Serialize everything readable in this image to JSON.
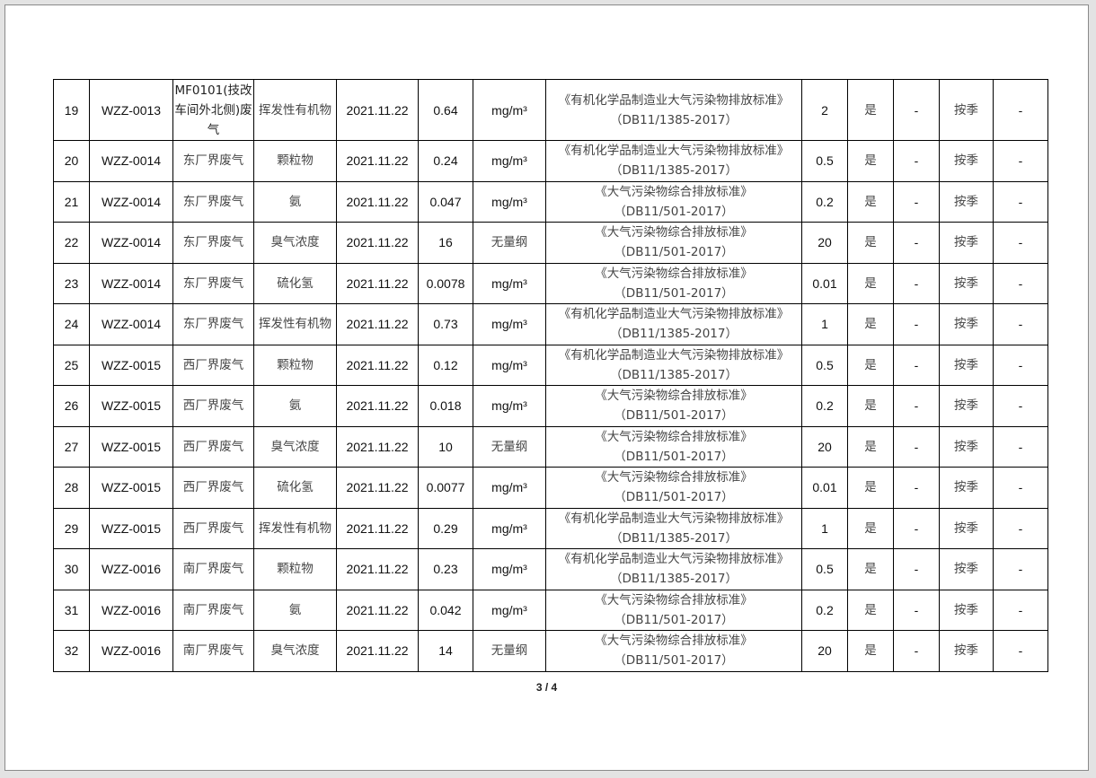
{
  "rows": [
    {
      "no": "19",
      "code": "WZZ-0013",
      "point": "MF0101(技改车间外北侧)废气",
      "item": "挥发性有机物",
      "date": "2021.11.22",
      "value": "0.64",
      "unit": "mg/m³",
      "standard": "《有机化学品制造业大气污染物排放标准》",
      "standard_code": "（DB11/1385-2017）",
      "limit": "2",
      "ok": "是",
      "c1": "-",
      "freq": "按季",
      "c2": "-"
    },
    {
      "no": "20",
      "code": "WZZ-0014",
      "point": "东厂界废气",
      "item": "颗粒物",
      "date": "2021.11.22",
      "value": "0.24",
      "unit": "mg/m³",
      "standard": "《有机化学品制造业大气污染物排放标准》",
      "standard_code": "（DB11/1385-2017）",
      "limit": "0.5",
      "ok": "是",
      "c1": "-",
      "freq": "按季",
      "c2": "-"
    },
    {
      "no": "21",
      "code": "WZZ-0014",
      "point": "东厂界废气",
      "item": "氨",
      "date": "2021.11.22",
      "value": "0.047",
      "unit": "mg/m³",
      "standard": "《大气污染物综合排放标准》",
      "standard_code": "（DB11/501-2017）",
      "limit": "0.2",
      "ok": "是",
      "c1": "-",
      "freq": "按季",
      "c2": "-"
    },
    {
      "no": "22",
      "code": "WZZ-0014",
      "point": "东厂界废气",
      "item": "臭气浓度",
      "date": "2021.11.22",
      "value": "16",
      "unit": "无量纲",
      "standard": "《大气污染物综合排放标准》",
      "standard_code": "（DB11/501-2017）",
      "limit": "20",
      "ok": "是",
      "c1": "-",
      "freq": "按季",
      "c2": "-"
    },
    {
      "no": "23",
      "code": "WZZ-0014",
      "point": "东厂界废气",
      "item": "硫化氢",
      "date": "2021.11.22",
      "value": "0.0078",
      "unit": "mg/m³",
      "standard": "《大气污染物综合排放标准》",
      "standard_code": "（DB11/501-2017）",
      "limit": "0.01",
      "ok": "是",
      "c1": "-",
      "freq": "按季",
      "c2": "-"
    },
    {
      "no": "24",
      "code": "WZZ-0014",
      "point": "东厂界废气",
      "item": "挥发性有机物",
      "date": "2021.11.22",
      "value": "0.73",
      "unit": "mg/m³",
      "standard": "《有机化学品制造业大气污染物排放标准》",
      "standard_code": "（DB11/1385-2017）",
      "limit": "1",
      "ok": "是",
      "c1": "-",
      "freq": "按季",
      "c2": "-"
    },
    {
      "no": "25",
      "code": "WZZ-0015",
      "point": "西厂界废气",
      "item": "颗粒物",
      "date": "2021.11.22",
      "value": "0.12",
      "unit": "mg/m³",
      "standard": "《有机化学品制造业大气污染物排放标准》",
      "standard_code": "（DB11/1385-2017）",
      "limit": "0.5",
      "ok": "是",
      "c1": "-",
      "freq": "按季",
      "c2": "-"
    },
    {
      "no": "26",
      "code": "WZZ-0015",
      "point": "西厂界废气",
      "item": "氨",
      "date": "2021.11.22",
      "value": "0.018",
      "unit": "mg/m³",
      "standard": "《大气污染物综合排放标准》",
      "standard_code": "（DB11/501-2017）",
      "limit": "0.2",
      "ok": "是",
      "c1": "-",
      "freq": "按季",
      "c2": "-"
    },
    {
      "no": "27",
      "code": "WZZ-0015",
      "point": "西厂界废气",
      "item": "臭气浓度",
      "date": "2021.11.22",
      "value": "10",
      "unit": "无量纲",
      "standard": "《大气污染物综合排放标准》",
      "standard_code": "（DB11/501-2017）",
      "limit": "20",
      "ok": "是",
      "c1": "-",
      "freq": "按季",
      "c2": "-"
    },
    {
      "no": "28",
      "code": "WZZ-0015",
      "point": "西厂界废气",
      "item": "硫化氢",
      "date": "2021.11.22",
      "value": "0.0077",
      "unit": "mg/m³",
      "standard": "《大气污染物综合排放标准》",
      "standard_code": "（DB11/501-2017）",
      "limit": "0.01",
      "ok": "是",
      "c1": "-",
      "freq": "按季",
      "c2": "-"
    },
    {
      "no": "29",
      "code": "WZZ-0015",
      "point": "西厂界废气",
      "item": "挥发性有机物",
      "date": "2021.11.22",
      "value": "0.29",
      "unit": "mg/m³",
      "standard": "《有机化学品制造业大气污染物排放标准》",
      "standard_code": "（DB11/1385-2017）",
      "limit": "1",
      "ok": "是",
      "c1": "-",
      "freq": "按季",
      "c2": "-"
    },
    {
      "no": "30",
      "code": "WZZ-0016",
      "point": "南厂界废气",
      "item": "颗粒物",
      "date": "2021.11.22",
      "value": "0.23",
      "unit": "mg/m³",
      "standard": "《有机化学品制造业大气污染物排放标准》",
      "standard_code": "（DB11/1385-2017）",
      "limit": "0.5",
      "ok": "是",
      "c1": "-",
      "freq": "按季",
      "c2": "-"
    },
    {
      "no": "31",
      "code": "WZZ-0016",
      "point": "南厂界废气",
      "item": "氨",
      "date": "2021.11.22",
      "value": "0.042",
      "unit": "mg/m³",
      "standard": "《大气污染物综合排放标准》",
      "standard_code": "（DB11/501-2017）",
      "limit": "0.2",
      "ok": "是",
      "c1": "-",
      "freq": "按季",
      "c2": "-"
    },
    {
      "no": "32",
      "code": "WZZ-0016",
      "point": "南厂界废气",
      "item": "臭气浓度",
      "date": "2021.11.22",
      "value": "14",
      "unit": "无量纲",
      "standard": "《大气污染物综合排放标准》",
      "standard_code": "（DB11/501-2017）",
      "limit": "20",
      "ok": "是",
      "c1": "-",
      "freq": "按季",
      "c2": "-"
    }
  ],
  "page_number": "3 / 4"
}
